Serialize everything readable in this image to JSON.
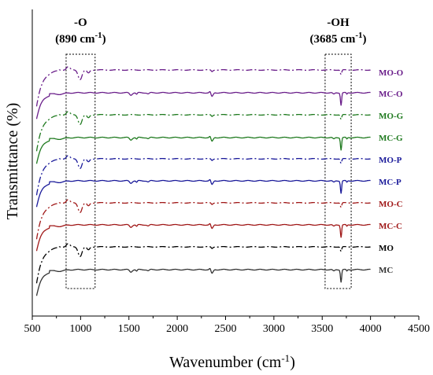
{
  "chart_data": {
    "type": "line",
    "xlabel": "Wavenumber (cm",
    "xlabel_sup": "-1",
    "xlabel_close": ")",
    "ylabel": "Transmittance (%)",
    "xlim": [
      500,
      4500
    ],
    "x_ticks": [
      "500",
      "1000",
      "1500",
      "2000",
      "2500",
      "3000",
      "3500",
      "4000",
      "4500"
    ],
    "x_tick_values": [
      500,
      1000,
      1500,
      2000,
      2500,
      3000,
      3500,
      4000,
      4500
    ],
    "y_ticks_shown": false,
    "annotations": [
      {
        "label_line1": "-O",
        "label_line2": "(890 cm",
        "sup": "-1",
        "close": ")",
        "x_range": [
          850,
          1150
        ]
      },
      {
        "label_line1": "-OH",
        "label_line2": "(3685 cm",
        "sup": "-1",
        "close": ")",
        "x_range": [
          3530,
          3800
        ]
      }
    ],
    "series": [
      {
        "name": "MO-O",
        "color": "#6a1e8a",
        "style": "dashdot",
        "shape": "mo"
      },
      {
        "name": "MC-O",
        "color": "#6a1e8a",
        "style": "solid",
        "shape": "mc"
      },
      {
        "name": "MO-G",
        "color": "#1f7a1f",
        "style": "dashdot",
        "shape": "mo"
      },
      {
        "name": "MC-G",
        "color": "#1f7a1f",
        "style": "solid",
        "shape": "mc"
      },
      {
        "name": "MO-P",
        "color": "#1a1a9a",
        "style": "dashdot",
        "shape": "mo"
      },
      {
        "name": "MC-P",
        "color": "#1a1a9a",
        "style": "solid",
        "shape": "mc"
      },
      {
        "name": "MO-C",
        "color": "#a01818",
        "style": "dashdot",
        "shape": "mo"
      },
      {
        "name": "MC-C",
        "color": "#a01818",
        "style": "solid",
        "shape": "mc"
      },
      {
        "name": "MO",
        "color": "#000000",
        "style": "dashdot",
        "shape": "mo"
      },
      {
        "name": "MC",
        "color": "#333333",
        "style": "solid",
        "shape": "mc"
      }
    ]
  }
}
